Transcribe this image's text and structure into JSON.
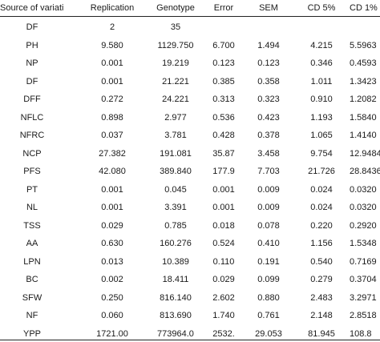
{
  "table": {
    "headers": [
      "Source of variation",
      "Replication",
      "Genotype",
      "Error",
      "SEM",
      "CD 5%",
      "CD 1%"
    ],
    "rows": [
      [
        "DF",
        "2",
        "35",
        "",
        "",
        "",
        ""
      ],
      [
        "PH",
        "9.580",
        "1129.750",
        "6.700",
        "1.494",
        "4.215",
        "5.5963"
      ],
      [
        "NP",
        "0.001",
        "19.219",
        "0.123",
        "0.123",
        "0.346",
        "0.4593"
      ],
      [
        "DF",
        "0.001",
        "21.221",
        "0.385",
        "0.358",
        "1.011",
        "1.3423"
      ],
      [
        "DFF",
        "0.272",
        "24.221",
        "0.313",
        "0.323",
        "0.910",
        "1.2082"
      ],
      [
        "NFLC",
        "0.898",
        "2.977",
        "0.536",
        "0.423",
        "1.193",
        "1.5840"
      ],
      [
        "NFRC",
        "0.037",
        "3.781",
        "0.428",
        "0.378",
        "1.065",
        "1.4140"
      ],
      [
        "NCP",
        "27.382",
        "191.081",
        "35.87",
        "3.458",
        "9.754",
        "12.9484"
      ],
      [
        "PFS",
        "42.080",
        "389.840",
        "177.9",
        "7.703",
        "21.726",
        "28.8436"
      ],
      [
        "PT",
        "0.001",
        "0.045",
        "0.001",
        "0.009",
        "0.024",
        "0.0320"
      ],
      [
        "NL",
        "0.001",
        "3.391",
        "0.001",
        "0.009",
        "0.024",
        "0.0320"
      ],
      [
        "TSS",
        "0.029",
        "0.785",
        "0.018",
        "0.078",
        "0.220",
        "0.2920"
      ],
      [
        "AA",
        "0.630",
        "160.276",
        "0.524",
        "0.410",
        "1.156",
        "1.5348"
      ],
      [
        "LPN",
        "0.013",
        "10.389",
        "0.110",
        "0.191",
        "0.540",
        "0.7169"
      ],
      [
        "BC",
        "0.002",
        "18.411",
        "0.029",
        "0.099",
        "0.279",
        "0.3704"
      ],
      [
        "SFW",
        "0.250",
        "816.140",
        "2.602",
        "0.880",
        "2.483",
        "3.2971"
      ],
      [
        "NF",
        "0.060",
        "813.690",
        "1.740",
        "0.761",
        "2.148",
        "2.8518"
      ],
      [
        "YPP",
        "1721.00",
        "773964.0",
        "2532.",
        "29.053",
        "81.945",
        "108.8"
      ]
    ]
  }
}
